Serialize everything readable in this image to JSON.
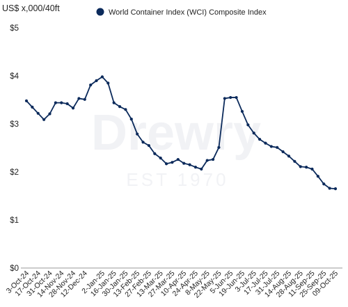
{
  "chart_data": {
    "type": "line",
    "unit_label": "US$ x,000/40ft",
    "watermark": {
      "brand": "Drewry",
      "tagline": "EST 1970"
    },
    "legend": {
      "label": "World Container Index (WCI) Composite Index",
      "placement": "top"
    },
    "ylim": [
      0,
      5
    ],
    "y_ticks": [
      {
        "value": 0,
        "label": "$0"
      },
      {
        "value": 1,
        "label": "$1"
      },
      {
        "value": 2,
        "label": "$2"
      },
      {
        "value": 3,
        "label": "$3"
      },
      {
        "value": 4,
        "label": "$4"
      },
      {
        "value": 5,
        "label": "$5"
      }
    ],
    "x_tick_labels": [
      "3-Oct-24",
      "17-Oct-24",
      "31-Oct-24",
      "14-Nov-24",
      "28-Nov-24",
      "12-Dec-24",
      "2-Jan-25",
      "16-Jan-25",
      "30-Jan-25",
      "13-Feb-25",
      "27-Feb-25",
      "13-Mar-25",
      "27-Mar-25",
      "10-Apr-25",
      "24-Apr-25",
      "8-May-25",
      "22-May-25",
      "5-Jun-25",
      "19-Jun-25",
      "3-Jul-25",
      "17-Jul-25",
      "31-Jul-25",
      "14-Aug-25",
      "28-Aug-25",
      "11-Sep-25",
      "25-Sep-25",
      "09-Oct-25"
    ],
    "grid": false,
    "colors": {
      "series": "#0b2a5b",
      "axis": "#9a9a9a"
    },
    "series": [
      {
        "name": "World Container Index (WCI) Composite Index",
        "x": [
          "3-Oct-24",
          "10-Oct-24",
          "17-Oct-24",
          "24-Oct-24",
          "31-Oct-24",
          "7-Nov-24",
          "14-Nov-24",
          "21-Nov-24",
          "28-Nov-24",
          "5-Dec-24",
          "12-Dec-24",
          "19-Dec-24",
          "26-Dec-24",
          "2-Jan-25",
          "9-Jan-25",
          "16-Jan-25",
          "23-Jan-25",
          "30-Jan-25",
          "6-Feb-25",
          "13-Feb-25",
          "20-Feb-25",
          "27-Feb-25",
          "6-Mar-25",
          "13-Mar-25",
          "20-Mar-25",
          "27-Mar-25",
          "3-Apr-25",
          "10-Apr-25",
          "17-Apr-25",
          "24-Apr-25",
          "1-May-25",
          "8-May-25",
          "15-May-25",
          "22-May-25",
          "29-May-25",
          "5-Jun-25",
          "12-Jun-25",
          "19-Jun-25",
          "26-Jun-25",
          "3-Jul-25",
          "10-Jul-25",
          "17-Jul-25",
          "24-Jul-25",
          "31-Jul-25",
          "7-Aug-25",
          "14-Aug-25",
          "21-Aug-25",
          "28-Aug-25",
          "4-Sep-25",
          "11-Sep-25",
          "18-Sep-25",
          "25-Sep-25",
          "2-Oct-25",
          "09-Oct-25"
        ],
        "values": [
          3.48,
          3.35,
          3.22,
          3.09,
          3.21,
          3.44,
          3.44,
          3.42,
          3.33,
          3.53,
          3.51,
          3.81,
          3.9,
          3.98,
          3.85,
          3.44,
          3.36,
          3.3,
          3.1,
          2.79,
          2.62,
          2.55,
          2.38,
          2.29,
          2.17,
          2.2,
          2.26,
          2.18,
          2.15,
          2.1,
          2.06,
          2.24,
          2.26,
          2.51,
          3.53,
          3.55,
          3.55,
          3.26,
          2.98,
          2.81,
          2.68,
          2.6,
          2.53,
          2.51,
          2.42,
          2.33,
          2.22,
          2.11,
          2.1,
          2.06,
          1.91,
          1.75,
          1.66,
          1.65
        ]
      }
    ]
  }
}
